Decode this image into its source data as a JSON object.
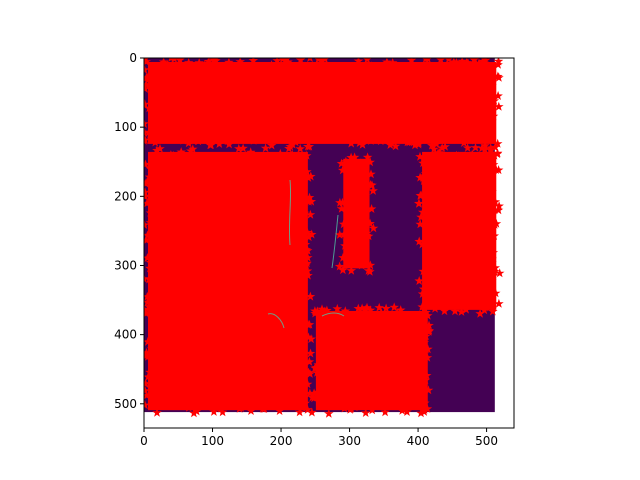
{
  "chart_data": {
    "type": "heatmap",
    "title": "",
    "xlabel": "",
    "ylabel": "",
    "xlim": [
      0,
      540
    ],
    "ylim": [
      535,
      0
    ],
    "grid": false,
    "x_ticks": [
      0,
      100,
      200,
      300,
      400,
      500
    ],
    "x_tick_labels": [
      "0",
      "100",
      "200",
      "300",
      "400",
      "500"
    ],
    "y_ticks": [
      0,
      100,
      200,
      300,
      400,
      500
    ],
    "y_tick_labels": [
      "0",
      "100",
      "200",
      "300",
      "400",
      "500"
    ],
    "image": {
      "extent_x": [
        0,
        512
      ],
      "extent_y": [
        512,
        0
      ],
      "colormap": "viridis",
      "background_color": "#440154"
    },
    "overlay_markers": {
      "marker": "star",
      "color": "#ff0000",
      "coverage": "dense",
      "clusters": [
        {
          "region": "full-width top band",
          "x": [
            0,
            520
          ],
          "y": [
            0,
            130
          ]
        },
        {
          "region": "left-central band",
          "x": [
            0,
            245
          ],
          "y": [
            130,
            515
          ]
        },
        {
          "region": "central band",
          "x": [
            245,
            420
          ],
          "y": [
            360,
            515
          ]
        },
        {
          "region": "right band",
          "x": [
            400,
            520
          ],
          "y": [
            130,
            370
          ]
        },
        {
          "region": "center stripe",
          "x": [
            285,
            335
          ],
          "y": [
            140,
            310
          ]
        }
      ]
    }
  }
}
